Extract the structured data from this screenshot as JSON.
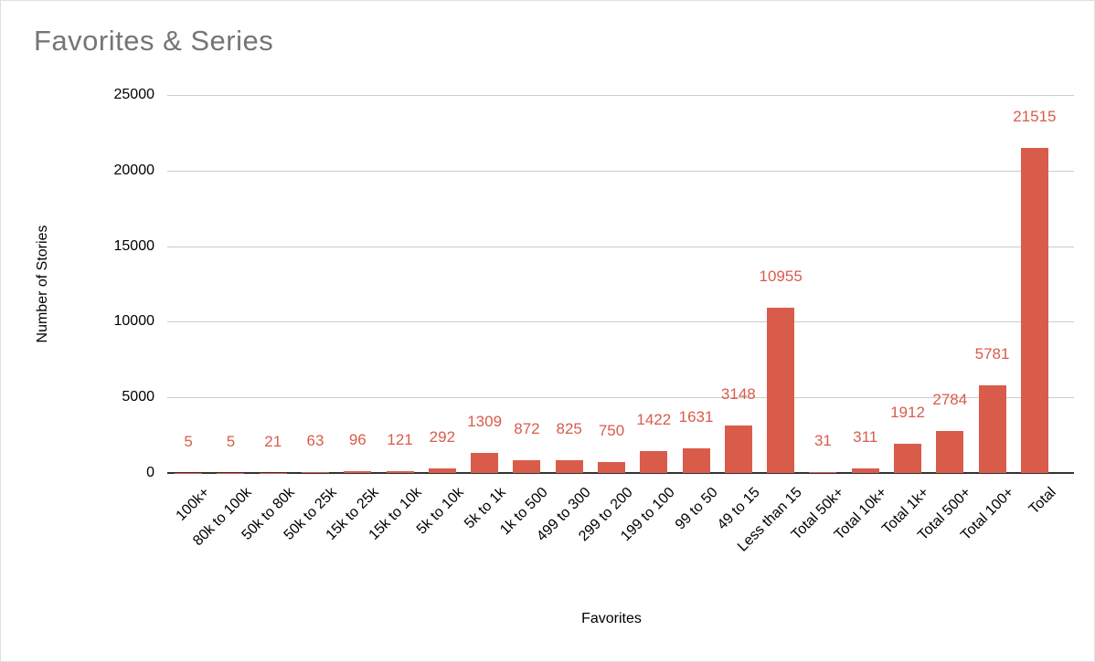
{
  "chart_data": {
    "type": "bar",
    "title": "Favorites & Series",
    "xlabel": "Favorites",
    "ylabel": "Number of Stories",
    "categories": [
      "100k+",
      "80k to 100k",
      "50k to 80k",
      "50k to 25k",
      "15k to 25k",
      "15k to 10k",
      "5k to 10k",
      "5k to 1k",
      "1k to 500",
      "499 to 300",
      "299 to 200",
      "199 to 100",
      "99 to 50",
      "49 to 15",
      "Less than 15",
      "Total 50k+",
      "Total 10k+",
      "Total 1k+",
      "Total 500+",
      "Total 100+",
      "Total"
    ],
    "values": [
      5,
      5,
      21,
      63,
      96,
      121,
      292,
      1309,
      872,
      825,
      750,
      1422,
      1631,
      3148,
      10955,
      31,
      311,
      1912,
      2784,
      5781,
      21515
    ],
    "ylim": [
      0,
      25000
    ],
    "yticks": [
      0,
      5000,
      10000,
      15000,
      20000,
      25000
    ],
    "grid": true,
    "legend": "none",
    "bar_color": "#d95c4b",
    "value_label_color": "#d95c4b",
    "title_color": "#757575",
    "axis_text_color": "#000000",
    "gridline_color": "#cccccc",
    "axisline_color": "#333333"
  }
}
